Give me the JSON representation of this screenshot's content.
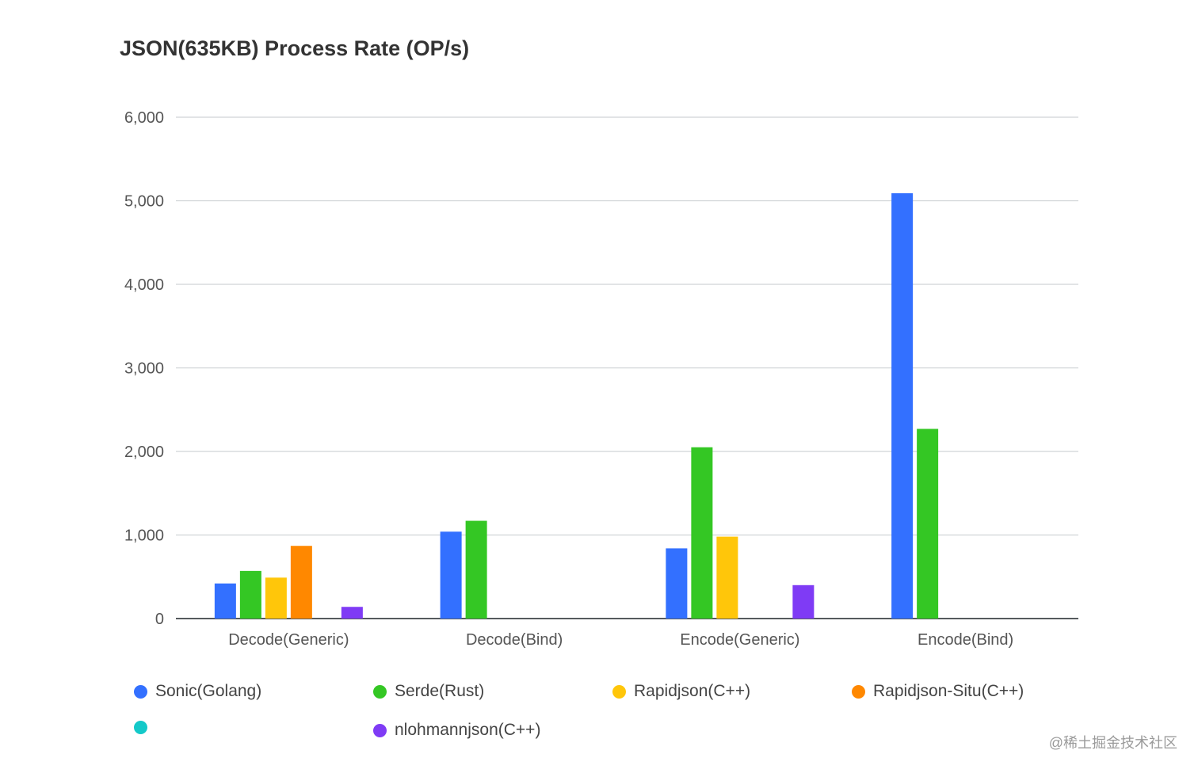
{
  "chart_data": {
    "type": "bar",
    "title": "JSON(635KB) Process Rate (OP/s)",
    "categories": [
      "Decode(Generic)",
      "Decode(Bind)",
      "Encode(Generic)",
      "Encode(Bind)"
    ],
    "ylim": [
      0,
      6000
    ],
    "yticks": [
      0,
      1000,
      2000,
      3000,
      4000,
      5000,
      6000
    ],
    "ytick_labels": [
      "0",
      "1,000",
      "2,000",
      "3,000",
      "4,000",
      "5,000",
      "6,000"
    ],
    "grid": true,
    "legend_position": "bottom",
    "series": [
      {
        "name": "Sonic(Golang)",
        "color": "#3370ff",
        "values": [
          420,
          1040,
          840,
          5090
        ]
      },
      {
        "name": "Serde(Rust)",
        "color": "#34c724",
        "values": [
          570,
          1170,
          2050,
          2270
        ]
      },
      {
        "name": "Rapidjson(C++)",
        "color": "#ffc60a",
        "values": [
          490,
          null,
          980,
          null
        ]
      },
      {
        "name": "Rapidjson-Situ(C++)",
        "color": "#ff8800",
        "values": [
          870,
          null,
          null,
          null
        ]
      },
      {
        "name": "",
        "color": "#14c9c9",
        "values": [
          null,
          null,
          null,
          null
        ]
      },
      {
        "name": "nlohmannjson(C++)",
        "color": "#7f3bf5",
        "values": [
          140,
          null,
          400,
          null
        ]
      }
    ]
  },
  "watermark": "@稀土掘金技术社区"
}
